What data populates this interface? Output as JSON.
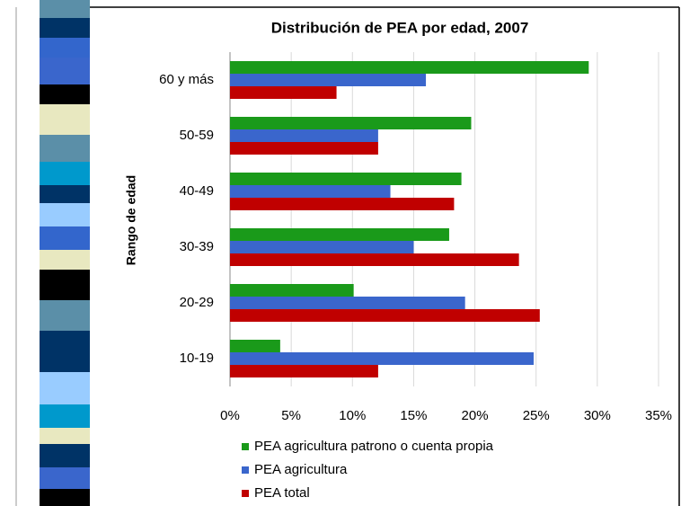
{
  "chart_data": {
    "type": "hbar",
    "title": "Distribución de PEA por edad, 2007",
    "y_label": "Rango de edad",
    "categories": [
      "60 y más",
      "50-59",
      "40-49",
      "30-39",
      "20-29",
      "10-19"
    ],
    "series": [
      {
        "name": "PEA agricultura patrono o cuenta propia",
        "color": "#1a9a1a",
        "values": [
          29.3,
          19.7,
          18.9,
          17.9,
          10.1,
          4.1
        ]
      },
      {
        "name": "PEA agricultura",
        "color": "#3a66cc",
        "values": [
          16.0,
          12.1,
          13.1,
          15.0,
          19.2,
          24.8
        ]
      },
      {
        "name": "PEA total",
        "color": "#c00000",
        "values": [
          8.7,
          12.1,
          18.3,
          23.6,
          25.3,
          12.1
        ]
      }
    ],
    "xlim": [
      0,
      35
    ],
    "xticks": [
      {
        "value": 0,
        "label": "0%"
      },
      {
        "value": 5,
        "label": "5%"
      },
      {
        "value": 10,
        "label": "10%"
      },
      {
        "value": 15,
        "label": "15%"
      },
      {
        "value": 20,
        "label": "20%"
      },
      {
        "value": 25,
        "label": "25%"
      },
      {
        "value": 30,
        "label": "30%"
      },
      {
        "value": 35,
        "label": "35%"
      }
    ],
    "grid": true
  }
}
